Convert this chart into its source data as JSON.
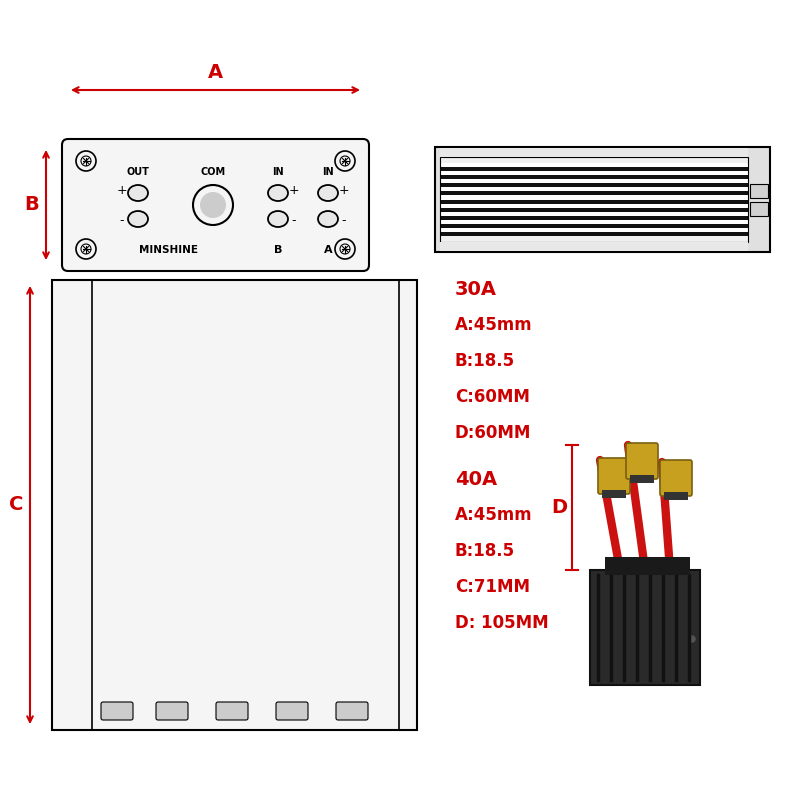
{
  "bg_color": "#ffffff",
  "line_color": "#000000",
  "red_color": "#cc0000",
  "text_specs_30A": [
    "30A",
    "A:45mm",
    "B:18.5",
    "C:60MM",
    "D:60MM"
  ],
  "text_specs_40A": [
    "40A",
    "A:45mm",
    "B:18.5",
    "C:71MM",
    "D: 105MM"
  ],
  "label_A": "A",
  "label_B": "B",
  "label_C": "C",
  "label_D": "D",
  "brand": "MINSHINE",
  "num_fins": 18,
  "fin_color_dark": "#111111",
  "fin_color_light": "#ffffff",
  "box_color": "#1c1c1c",
  "xt_color": "#c8a020",
  "xt_dark": "#7a6010",
  "cable_color": "#cc1111"
}
